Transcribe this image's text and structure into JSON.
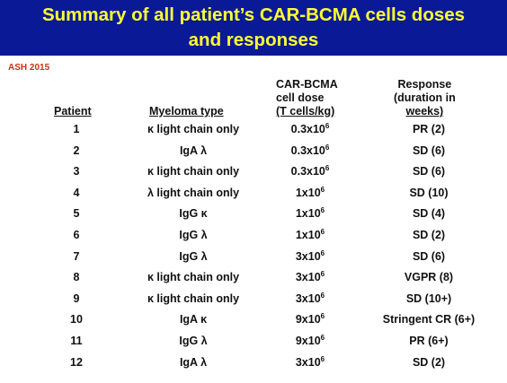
{
  "header": {
    "title_line1": "Summary of all patient’s CAR-BCMA cells doses",
    "title_line2": "and responses"
  },
  "tag": "ASH 2015",
  "columns": {
    "patient": "Patient",
    "myeloma": "Myeloma type",
    "dose_l1": "CAR-BCMA",
    "dose_l2": "cell dose",
    "dose_l3": "(T cells/kg)",
    "resp_l1": "Response",
    "resp_l2": "(duration in",
    "resp_l3": "weeks)"
  },
  "rows": [
    {
      "patient": "1",
      "type": "κ light chain only",
      "dose_base": "0.3x10",
      "dose_exp": "6",
      "response": "PR (2)"
    },
    {
      "patient": "2",
      "type": "IgA λ",
      "dose_base": "0.3x10",
      "dose_exp": "6",
      "response": "SD (6)"
    },
    {
      "patient": "3",
      "type": "κ light chain only",
      "dose_base": "0.3x10",
      "dose_exp": "6",
      "response": "SD (6)"
    },
    {
      "patient": "4",
      "type": "λ light chain only",
      "dose_base": "1x10",
      "dose_exp": "6",
      "response": "SD (10)"
    },
    {
      "patient": "5",
      "type": "IgG κ",
      "dose_base": "1x10",
      "dose_exp": "6",
      "response": "SD (4)"
    },
    {
      "patient": "6",
      "type": "IgG λ",
      "dose_base": "1x10",
      "dose_exp": "6",
      "response": "SD (2)"
    },
    {
      "patient": "7",
      "type": "IgG λ",
      "dose_base": "3x10",
      "dose_exp": "6",
      "response": "SD (6)"
    },
    {
      "patient": "8",
      "type": "κ light chain only",
      "dose_base": "3x10",
      "dose_exp": "6",
      "response": "VGPR (8)"
    },
    {
      "patient": "9",
      "type": "κ light chain only",
      "dose_base": "3x10",
      "dose_exp": "6",
      "response": "SD (10+)"
    },
    {
      "patient": "10",
      "type": "IgA κ",
      "dose_base": "9x10",
      "dose_exp": "6",
      "response": "Stringent CR (6+)"
    },
    {
      "patient": "11",
      "type": "IgG λ",
      "dose_base": "9x10",
      "dose_exp": "6",
      "response": "PR (6+)"
    },
    {
      "patient": "12",
      "type": "IgA λ",
      "dose_base": "3x10",
      "dose_exp": "6",
      "response": "SD (2)"
    }
  ],
  "colors": {
    "header_bg": "#0a1a96",
    "title": "#ffff33",
    "tag": "#c8321e"
  }
}
